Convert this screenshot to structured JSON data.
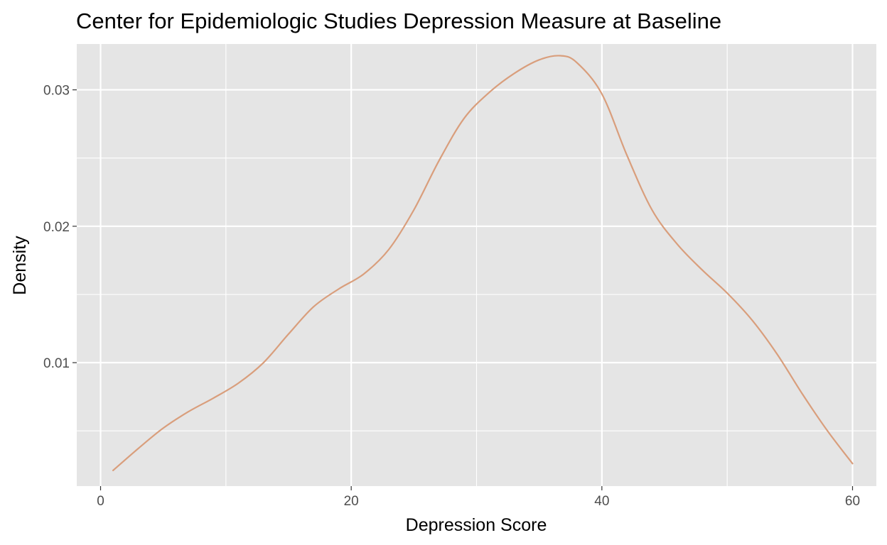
{
  "chart_data": {
    "type": "line",
    "title": "Center for Epidemiologic Studies Depression Measure at Baseline",
    "xlabel": "Depression Score",
    "ylabel": "Density",
    "xlim": [
      -1.9,
      61.9
    ],
    "ylim": [
      0.00095,
      0.03336
    ],
    "x_ticks": [
      0,
      20,
      40,
      60
    ],
    "x_tick_labels": [
      "0",
      "20",
      "40",
      "60"
    ],
    "x_minor_ticks": [
      10,
      30,
      50
    ],
    "y_ticks": [
      0.01,
      0.02,
      0.03
    ],
    "y_tick_labels": [
      "0.01",
      "0.02",
      "0.03"
    ],
    "y_minor_ticks": [
      0.005,
      0.015,
      0.025
    ],
    "grid": true,
    "legend": "none",
    "colors": {
      "panel_background": "#e5e5e5",
      "grid": "#ffffff",
      "line": "#d99e7c"
    },
    "series": [
      {
        "x": [
          1,
          3,
          5,
          7,
          9,
          11,
          13,
          15,
          17,
          19,
          21,
          23,
          25,
          27,
          29,
          31,
          33,
          35,
          36.7,
          38,
          40,
          42,
          44,
          46,
          48,
          50,
          52,
          54,
          56,
          58,
          60
        ],
        "y": [
          0.0021,
          0.0037,
          0.0052,
          0.0064,
          0.0074,
          0.0085,
          0.01,
          0.0121,
          0.0141,
          0.0154,
          0.0165,
          0.0183,
          0.0212,
          0.0248,
          0.0279,
          0.0298,
          0.0312,
          0.0322,
          0.0325,
          0.032,
          0.0297,
          0.0252,
          0.0212,
          0.0187,
          0.0168,
          0.0151,
          0.0131,
          0.0106,
          0.0077,
          0.005,
          0.0026
        ]
      }
    ]
  }
}
